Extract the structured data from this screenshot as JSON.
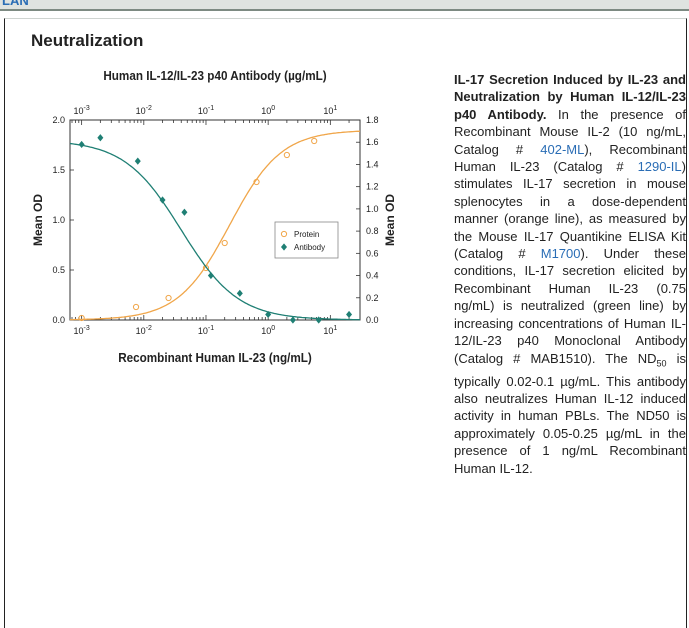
{
  "header": {
    "label": "LAN"
  },
  "section_title": "Neutralization",
  "caption": {
    "bold": "IL-17 Secretion Induced by IL-23 and Neutralization by Human IL-12/IL-23 p40 Antibody.",
    "t1": " In the presence of Recombinant Mouse IL-2 (10 ng/mL, Catalog # ",
    "link1": "402-ML",
    "t2": "), Recombinant Human IL-23 (Catalog # ",
    "link2": "1290-IL",
    "t3": ") stimulates IL-17 secretion in mouse splenocytes in a dose-dependent manner (orange line), as measured by the Mouse IL-17 Quantikine ELISA Kit (Catalog # ",
    "link3": "M1700",
    "t4": "). Under these conditions, IL-17 secretion elicited by Recombinant Human IL-23 (0.75 ng/mL) is neutralized (green line) by increasing concentrations of Human IL-12/IL-23 p40 Monoclonal Antibody (Catalog # MAB1510). The ND",
    "nd_sub": "50",
    "t5": " is typically 0.02-0.1 µg/mL. This antibody also neutralizes Human IL-12 induced activity in human PBLs. The ND50 is approximately 0.05-0.25 µg/mL in the presence of 1 ng/mL Recombinant Human IL-12."
  },
  "chart_data": {
    "type": "scatter",
    "title": "Human IL-12/IL-23 p40 Antibody (µg/mL)",
    "xlabel": "Recombinant Human IL-23 (ng/mL)",
    "ylabel": "Mean OD",
    "y2label": "Mean OD",
    "xscale": "log",
    "xlim": [
      0.00065,
      30
    ],
    "ylim": [
      0,
      2.0
    ],
    "y2lim": [
      0,
      1.8
    ],
    "x_ticks": [
      "10-3",
      "10-2",
      "10-1",
      "100",
      "101"
    ],
    "x2_ticks": [
      "10-3",
      "10-2",
      "10-1",
      "100",
      "101"
    ],
    "y_ticks": [
      "0.0",
      "0.5",
      "1.0",
      "1.5",
      "2.0"
    ],
    "y2_ticks": [
      "0.0",
      "0.2",
      "0.4",
      "0.6",
      "0.8",
      "1.0",
      "1.2",
      "1.4",
      "1.6",
      "1.8"
    ],
    "legend_position": "center-right",
    "series": [
      {
        "name": "Protein",
        "axis": "left",
        "marker": "open-circle",
        "color": "#f0a64a",
        "x": [
          0.001,
          0.0075,
          0.025,
          0.1,
          0.2,
          0.65,
          2.0,
          5.5
        ],
        "y": [
          0.02,
          0.13,
          0.22,
          0.52,
          0.77,
          1.38,
          1.65,
          1.79
        ],
        "curve": {
          "bottom": 0.0,
          "top": 1.9,
          "ec50": 0.24,
          "hill": 1.05
        }
      },
      {
        "name": "Antibody",
        "axis": "right",
        "marker": "filled-diamond",
        "color": "#1f7f74",
        "x": [
          0.001,
          0.002,
          0.008,
          0.02,
          0.045,
          0.12,
          0.35,
          1.0,
          2.5,
          6.5,
          20.0
        ],
        "y": [
          1.58,
          1.64,
          1.43,
          1.08,
          0.97,
          0.4,
          0.24,
          0.05,
          0.0,
          0.0,
          0.05
        ],
        "curve": {
          "bottom": 0.0,
          "top": 1.62,
          "ic50": 0.04,
          "hill": 0.95
        }
      }
    ]
  }
}
